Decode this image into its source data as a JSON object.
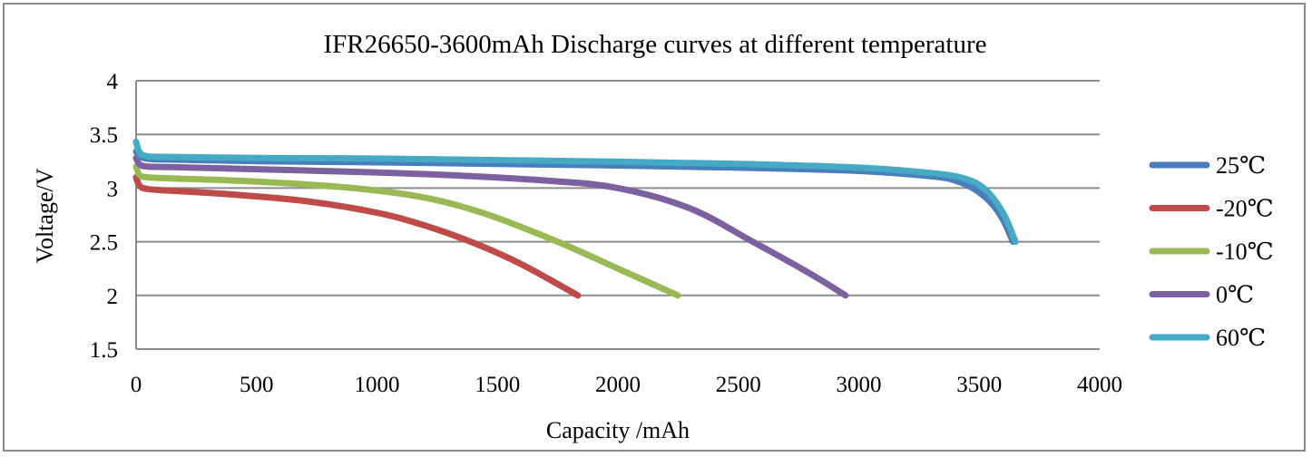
{
  "chart_data": {
    "type": "line",
    "title": "IFR26650-3600mAh  Discharge curves at different temperature",
    "xlabel": "Capacity /mAh",
    "ylabel": "Voltage/V",
    "xlim": [
      0,
      4000
    ],
    "ylim": [
      1.5,
      4
    ],
    "xticks": [
      "0",
      "500",
      "1000",
      "1500",
      "2000",
      "2500",
      "3000",
      "3500",
      "4000"
    ],
    "xtick_values": [
      0,
      500,
      1000,
      1500,
      2000,
      2500,
      3000,
      3500,
      4000
    ],
    "yticks": [
      "1.5",
      "2",
      "2.5",
      "3",
      "3.5",
      "4"
    ],
    "ytick_values": [
      1.5,
      2,
      2.5,
      3,
      3.5,
      4
    ],
    "grid": "horizontal",
    "legend_position": "right",
    "series": [
      {
        "name": "25℃",
        "color": "#4a7ebb",
        "x": [
          0,
          20,
          60,
          150,
          500,
          1000,
          1500,
          2000,
          2500,
          3000,
          3300,
          3400,
          3480,
          3550,
          3600,
          3640
        ],
        "y": [
          3.34,
          3.29,
          3.27,
          3.265,
          3.25,
          3.24,
          3.225,
          3.21,
          3.19,
          3.16,
          3.11,
          3.07,
          2.99,
          2.86,
          2.7,
          2.5
        ]
      },
      {
        "name": "-20℃",
        "color": "#be4b48",
        "x": [
          0,
          15,
          50,
          150,
          400,
          700,
          1000,
          1200,
          1400,
          1600,
          1834
        ],
        "y": [
          3.1,
          3.02,
          2.99,
          2.975,
          2.94,
          2.88,
          2.77,
          2.65,
          2.49,
          2.29,
          2.0
        ]
      },
      {
        "name": "-10℃",
        "color": "#98b954",
        "x": [
          0,
          15,
          50,
          150,
          500,
          900,
          1200,
          1450,
          1750,
          2000,
          2249
        ],
        "y": [
          3.2,
          3.12,
          3.1,
          3.09,
          3.06,
          3.0,
          2.91,
          2.76,
          2.5,
          2.25,
          2.0
        ]
      },
      {
        "name": "0℃",
        "color": "#7d60a0",
        "x": [
          0,
          15,
          50,
          150,
          600,
          1200,
          1700,
          2000,
          2300,
          2560,
          2800,
          2945
        ],
        "y": [
          3.28,
          3.22,
          3.2,
          3.195,
          3.17,
          3.13,
          3.07,
          3.0,
          2.81,
          2.5,
          2.2,
          2.0
        ]
      },
      {
        "name": "60℃",
        "color": "#46aac5",
        "x": [
          0,
          15,
          50,
          150,
          500,
          1000,
          1500,
          2000,
          2500,
          3000,
          3300,
          3420,
          3500,
          3560,
          3610,
          3650
        ],
        "y": [
          3.43,
          3.33,
          3.295,
          3.29,
          3.28,
          3.275,
          3.26,
          3.245,
          3.225,
          3.19,
          3.14,
          3.1,
          3.03,
          2.9,
          2.72,
          2.5
        ]
      }
    ]
  }
}
